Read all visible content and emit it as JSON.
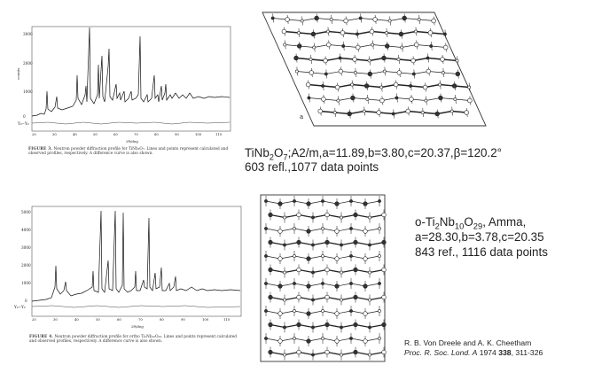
{
  "xrd_top": {
    "caption_fig": "FIGURE 3.",
    "caption_text": "Neutron powder diffraction profile for TiNb₂O₇. Lines and points represent calculated and observed profiles, respectively. A difference curve is also shown.",
    "ytick_labels": [
      "3000",
      "2000",
      "1000",
      "0"
    ],
    "xtick_labels": [
      "20",
      "30",
      "40",
      "50",
      "60",
      "70",
      "80",
      "90",
      "100",
      "110"
    ],
    "xlabel": "2θ/deg",
    "ylabel": "counts",
    "diff_label": "Y₀−Y₀"
  },
  "xrd_bottom": {
    "caption_fig": "FIGURE 4.",
    "caption_text": "Neutron powder diffraction profile for ortho Ti₂Nb₁₀O₂₉. Lines and points represent calculated and observed profiles, respectively. A difference curve is also shown.",
    "ytick_labels": [
      "5000",
      "4000",
      "3000",
      "2000",
      "1000",
      "0"
    ],
    "xtick_labels": [
      "20",
      "30",
      "40",
      "50",
      "60",
      "70",
      "80",
      "90",
      "100",
      "110"
    ],
    "xlabel": "2θ/deg",
    "diff_label": "Y₀−Y₀"
  },
  "tinb2o7": {
    "line1_formula_a": "TiNb",
    "line1_sub_a": "2",
    "line1_formula_b": "O",
    "line1_sub_b": "7",
    "line1_params": ";A2/m,a=11.89,b=3.80,c=20.37,β=120.2°",
    "line2": "603 refl.,1077 data points"
  },
  "ti2nb10o29": {
    "prefix": "o-Ti",
    "sub1": "2",
    "mid": "Nb",
    "sub2": "10",
    "end": "O",
    "sub3": "29",
    "suffix": ", Amma,",
    "line2": "a=28.30,b=3.78,c=20.35",
    "line3": "843 ref., 1116 data points"
  },
  "citation": {
    "authors": "R. B. Von Dreele and A. K. Cheetham",
    "journal": "Proc. R. Soc. Lond. A",
    "year": "1974",
    "volume": "338",
    "pages": "311-326"
  },
  "structure_top": {
    "axis_label": "a"
  }
}
